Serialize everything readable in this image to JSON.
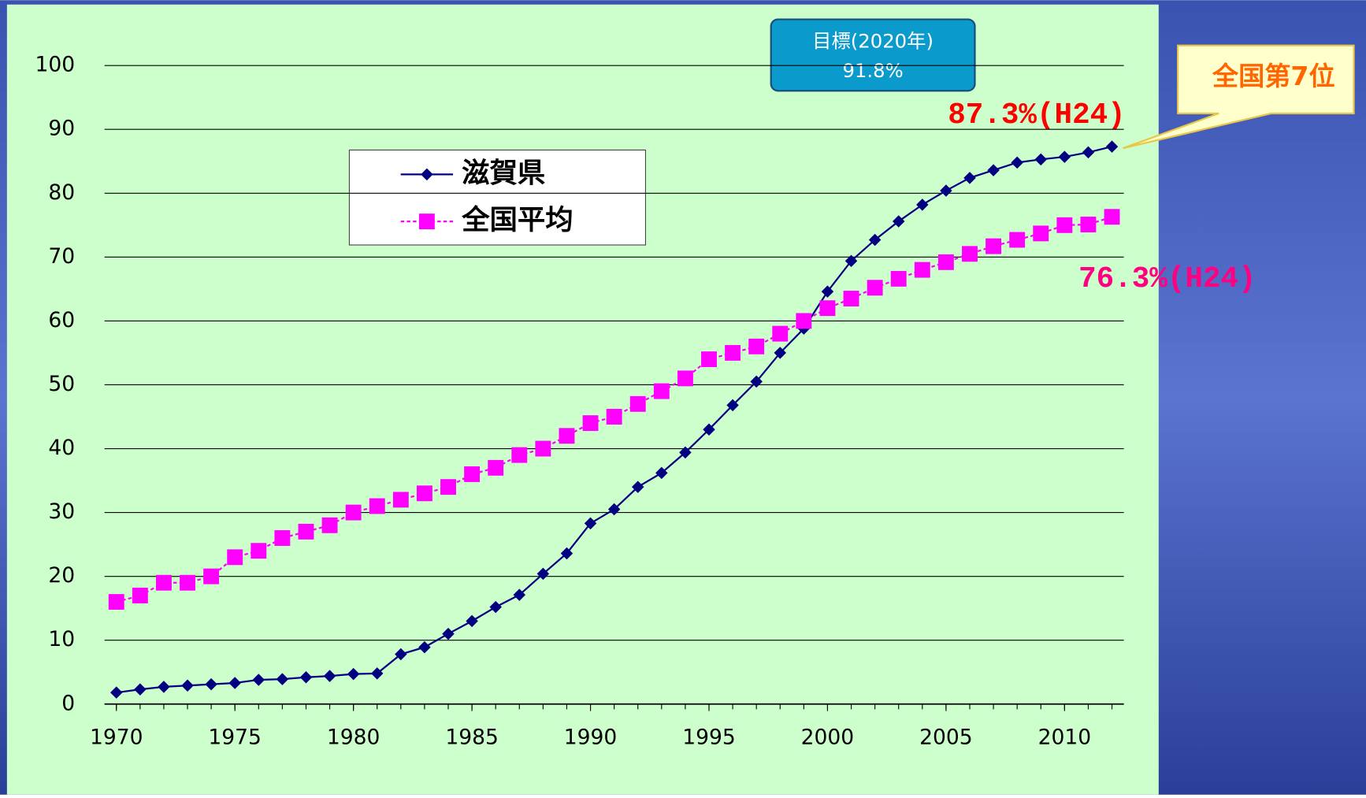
{
  "chart_data": {
    "type": "line",
    "x": [
      1970,
      1971,
      1972,
      1973,
      1974,
      1975,
      1976,
      1977,
      1978,
      1979,
      1980,
      1981,
      1982,
      1983,
      1984,
      1985,
      1986,
      1987,
      1988,
      1989,
      1990,
      1991,
      1992,
      1993,
      1994,
      1995,
      1996,
      1997,
      1998,
      1999,
      2000,
      2001,
      2002,
      2003,
      2004,
      2005,
      2006,
      2007,
      2008,
      2009,
      2010,
      2011,
      2012
    ],
    "series": [
      {
        "name": "滋賀県",
        "color": "#000080",
        "marker": "diamond",
        "values": [
          1.8,
          2.3,
          2.7,
          2.9,
          3.1,
          3.3,
          3.8,
          3.9,
          4.2,
          4.4,
          4.7,
          4.8,
          7.8,
          8.9,
          11,
          13,
          15.2,
          17.1,
          20.4,
          23.6,
          28.3,
          30.5,
          34,
          36.2,
          39.4,
          43,
          46.8,
          50.5,
          55,
          58.8,
          64.6,
          69.4,
          72.7,
          75.6,
          78.2,
          80.4,
          82.4,
          83.6,
          84.8,
          85.3,
          85.7,
          86.4,
          87.3
        ]
      },
      {
        "name": "全国平均",
        "color": "#ff00ff",
        "marker": "square",
        "values": [
          16,
          17,
          19,
          19,
          20,
          23,
          24,
          26,
          27,
          28,
          30,
          31,
          32,
          33,
          34,
          36,
          37,
          39,
          40,
          42,
          44,
          45,
          47,
          49,
          51,
          54,
          55,
          56,
          58,
          60,
          62,
          63.5,
          65.2,
          66.6,
          68,
          69.2,
          70.5,
          71.7,
          72.7,
          73.7,
          75,
          75.1,
          76.3
        ]
      }
    ],
    "xlim": [
      1969.5,
      2012.5
    ],
    "xticks": [
      1970,
      1975,
      1980,
      1985,
      1990,
      1995,
      2000,
      2005,
      2010
    ],
    "ylim": [
      0,
      100
    ],
    "yticks": [
      0,
      10,
      20,
      30,
      40,
      50,
      60,
      70,
      80,
      90,
      100
    ],
    "grid": true,
    "annotations": {
      "target_title": "目標(2020年)",
      "target_value": "91.8%",
      "shiga_label": "87.3%(H24)",
      "national_label": "76.3%(H24)",
      "rank": "全国第7位"
    }
  }
}
